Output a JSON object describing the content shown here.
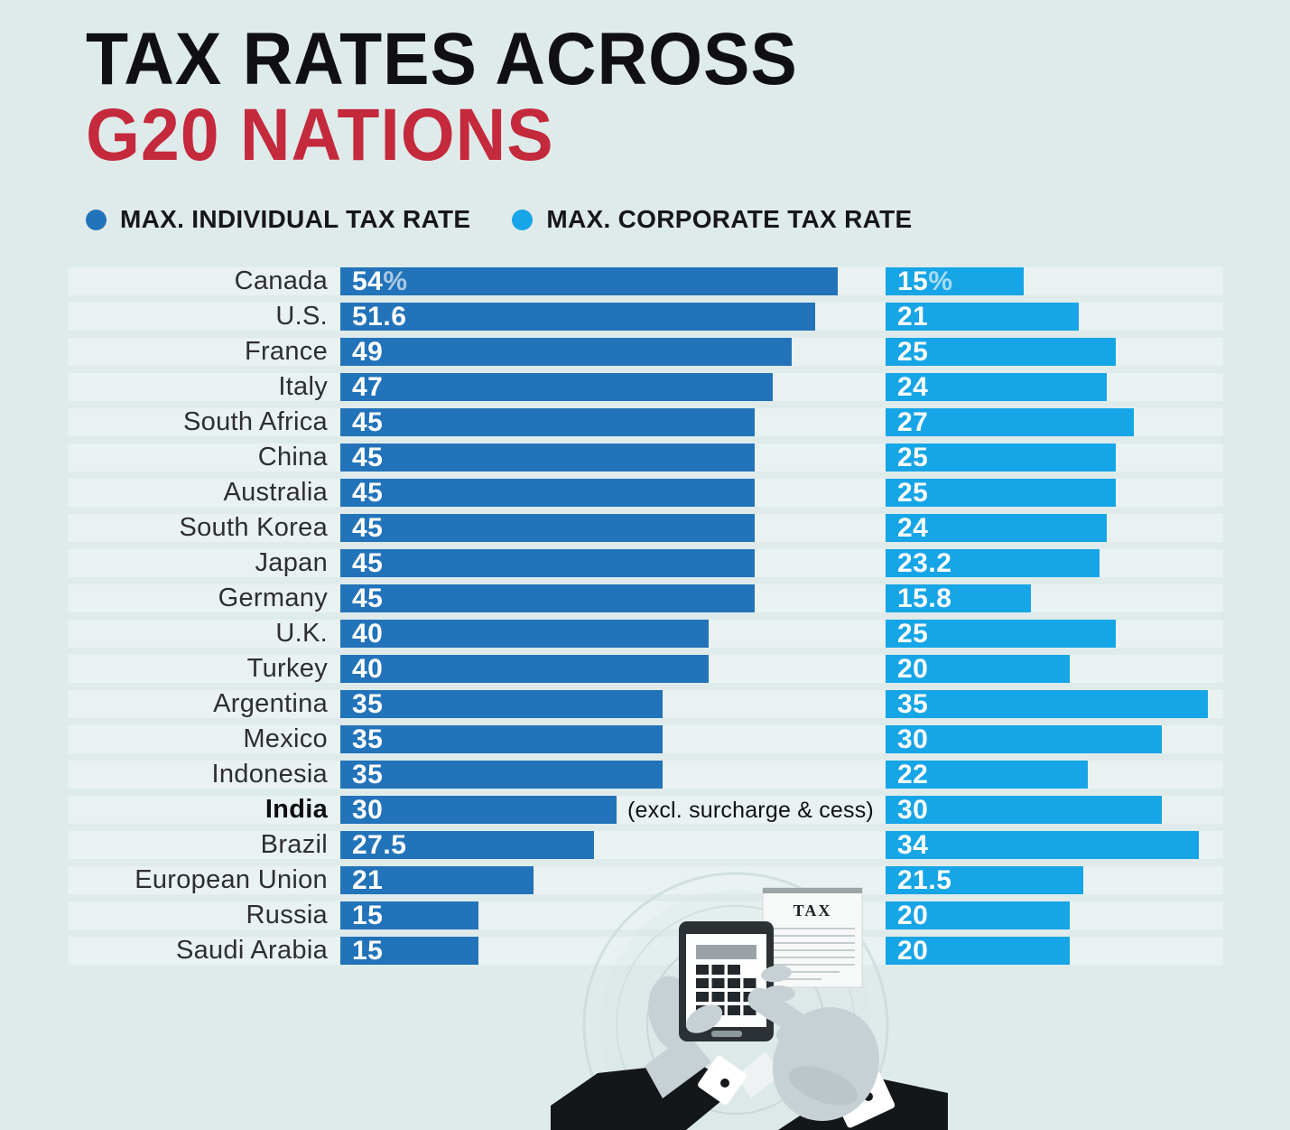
{
  "title": {
    "line1": "TAX RATES ACROSS",
    "line2": "G20 NATIONS"
  },
  "legend": [
    {
      "label": "MAX. INDIVIDUAL TAX RATE"
    },
    {
      "label": "MAX. CORPORATE TAX RATE"
    }
  ],
  "colors": {
    "background": "#dfebeb",
    "row_band": "#e9f2f1",
    "individual_bar_blue": "#2273b9",
    "corporate_bar_blue": "#16a5e6",
    "accent_red": "#c4293c",
    "title_black": "#101013"
  },
  "chart_data": {
    "type": "bar",
    "orientation": "horizontal",
    "title": "Tax rates across G20 nations",
    "unit": "percent",
    "xlim": [
      0,
      55
    ],
    "grid": false,
    "legend_position": "top",
    "categories": [
      "Canada",
      "U.S.",
      "France",
      "Italy",
      "South Africa",
      "China",
      "Australia",
      "South Korea",
      "Japan",
      "Germany",
      "U.K.",
      "Turkey",
      "Argentina",
      "Mexico",
      "Indonesia",
      "India",
      "Brazil",
      "European Union",
      "Russia",
      "Saudi Arabia"
    ],
    "series": [
      {
        "name": "Max. Individual Tax Rate",
        "color": "#2273b9",
        "values": [
          54,
          51.6,
          49,
          47,
          45,
          45,
          45,
          45,
          45,
          45,
          40,
          40,
          35,
          35,
          35,
          30,
          27.5,
          21,
          15,
          15
        ]
      },
      {
        "name": "Max. Corporate Tax Rate",
        "color": "#16a5e6",
        "values": [
          15,
          21,
          25,
          24,
          27,
          25,
          25,
          24,
          23.2,
          15.8,
          25,
          20,
          35,
          30,
          22,
          30,
          34,
          21.5,
          20,
          20
        ]
      }
    ],
    "first_row_value_suffix": "%",
    "bold_category": "India",
    "annotations": [
      {
        "category": "India",
        "series": "Max. Individual Tax Rate",
        "text": "(excl. surcharge & cess)"
      }
    ]
  },
  "illustration": {
    "document_label": "TAX"
  }
}
